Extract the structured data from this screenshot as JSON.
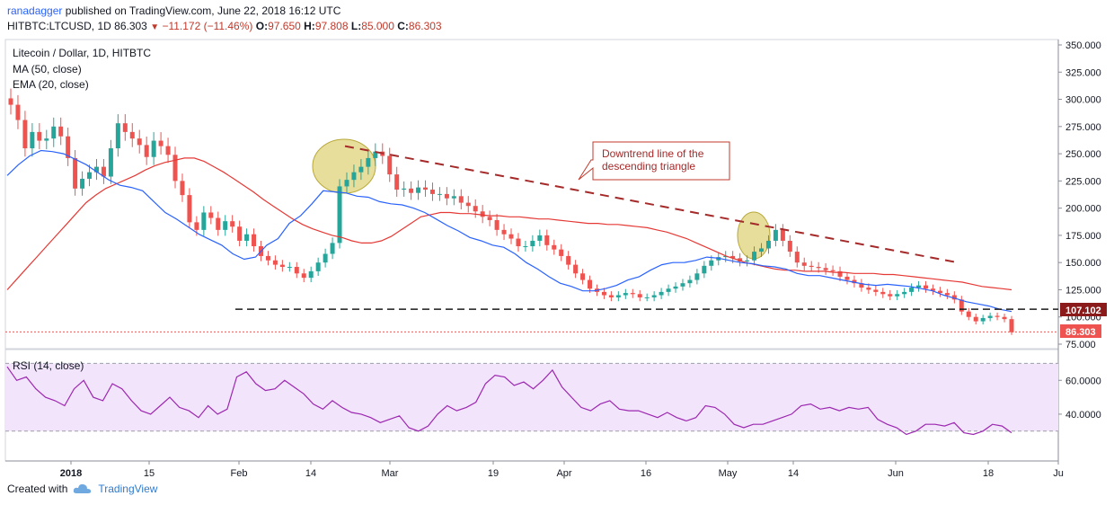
{
  "header": {
    "author": "ranadagger",
    "published": "published on TradingView.com, June 22, 2018 16:12 UTC",
    "symbol": "HITBTC:LTCUSD, 1D",
    "last": "86.303",
    "change": "−11.172 (−11.46%)",
    "o_label": "O:",
    "o_value": "97.650",
    "h_label": "H:",
    "h_value": "97.808",
    "l_label": "L:",
    "l_value": "85.000",
    "c_label": "C:",
    "c_value": "86.303"
  },
  "legend": {
    "title": "Litecoin / Dollar, 1D, HITBTC",
    "ma": "MA (50, close)",
    "ema": "EMA (20, close)",
    "rsi": "RSI (14, close)"
  },
  "annotation": {
    "line1": "Downtrend line of the",
    "line2": "descending triangle"
  },
  "price_labels": {
    "level": "107.102",
    "last": "86.303"
  },
  "footer": {
    "created": "Created with",
    "brand": "TradingView"
  },
  "colors": {
    "up": "#26a69a",
    "down": "#ef5350",
    "ma": "#e53935",
    "ema": "#2962ff",
    "rsi": "#9c27b0",
    "rsi_band": "#f1e4fb",
    "downtrend": "#a52a2a",
    "highlight": "#d4c24a"
  },
  "chart_data": {
    "type": "candlestick",
    "title": "Litecoin / Dollar, 1D, HITBTC",
    "y_ticks": [
      "350.000",
      "325.000",
      "300.000",
      "275.000",
      "250.000",
      "225.000",
      "200.000",
      "175.000",
      "150.000",
      "125.000",
      "100.000",
      "75.000"
    ],
    "y_range": [
      75,
      350
    ],
    "x_ticks": [
      "2018",
      "15",
      "Feb",
      "14",
      "Mar",
      "19",
      "Apr",
      "16",
      "May",
      "14",
      "Jun",
      "18",
      "Ju"
    ],
    "support_level": 107.102,
    "last_price": 86.303,
    "downtrend_line": [
      [
        27,
        257
      ],
      [
        84,
        150
      ]
    ],
    "closes": [
      295,
      281,
      255,
      270,
      262,
      264,
      275,
      266,
      246,
      218,
      227,
      233,
      238,
      229,
      255,
      278,
      270,
      264,
      258,
      247,
      262,
      257,
      249,
      225,
      212,
      187,
      180,
      196,
      191,
      180,
      188,
      183,
      170,
      176,
      165,
      156,
      152,
      148,
      146,
      146,
      140,
      136,
      142,
      150,
      158,
      168,
      220,
      226,
      233,
      238,
      246,
      252,
      248,
      231,
      217,
      218,
      214,
      219,
      217,
      213,
      213,
      209,
      211,
      205,
      202,
      197,
      192,
      189,
      180,
      176,
      172,
      165,
      165,
      170,
      175,
      166,
      162,
      156,
      148,
      140,
      134,
      126,
      123,
      120,
      118,
      120,
      122,
      121,
      118,
      118,
      120,
      123,
      126,
      128,
      131,
      134,
      140,
      147,
      152,
      155,
      156,
      154,
      151,
      152,
      160,
      163,
      170,
      180,
      170,
      160,
      150,
      147,
      146,
      145,
      143,
      142,
      137,
      134,
      131,
      127,
      125,
      123,
      121,
      119,
      121,
      123,
      127,
      129,
      126,
      124,
      122,
      120,
      116,
      105,
      100,
      96,
      99,
      101,
      100,
      98,
      86
    ],
    "ma50": [
      125,
      135,
      145,
      155,
      165,
      175,
      185,
      195,
      205,
      212,
      218,
      222,
      226,
      230,
      235,
      239,
      242,
      244,
      246,
      246,
      243,
      238,
      233,
      227,
      221,
      215,
      208,
      202,
      196,
      190,
      185,
      181,
      178,
      175,
      173,
      170,
      168,
      168,
      170,
      174,
      180,
      186,
      192,
      194,
      196,
      196,
      195,
      195,
      194,
      193,
      193,
      192,
      192,
      191,
      190,
      190,
      189,
      188,
      187,
      186,
      186,
      185,
      185,
      184,
      183,
      182,
      180,
      178,
      175,
      172,
      168,
      164,
      160,
      156,
      153,
      150,
      148,
      146,
      144,
      143,
      143,
      142,
      142,
      142,
      141,
      141,
      140,
      140,
      140,
      139,
      139,
      138,
      137,
      136,
      135,
      134,
      133,
      132,
      130,
      128,
      127,
      126,
      125
    ],
    "ema20": [
      230,
      240,
      248,
      253,
      252,
      250,
      245,
      240,
      233,
      226,
      221,
      219,
      216,
      206,
      196,
      190,
      183,
      176,
      171,
      166,
      158,
      153,
      155,
      166,
      172,
      186,
      193,
      204,
      216,
      215,
      214,
      211,
      210,
      206,
      204,
      203,
      200,
      196,
      190,
      184,
      179,
      173,
      170,
      166,
      164,
      158,
      150,
      144,
      137,
      131,
      128,
      124,
      124,
      126,
      129,
      134,
      137,
      143,
      148,
      150,
      150,
      152,
      155,
      154,
      152,
      150,
      149,
      147,
      146,
      144,
      140,
      138,
      138,
      136,
      134,
      132,
      130,
      129,
      130,
      129,
      128,
      126,
      124,
      120,
      117,
      114,
      112,
      110,
      107,
      105
    ],
    "rsi": [
      68,
      60,
      62,
      55,
      50,
      48,
      45,
      55,
      60,
      50,
      48,
      58,
      55,
      48,
      42,
      40,
      45,
      50,
      44,
      42,
      38,
      45,
      40,
      43,
      62,
      65,
      58,
      54,
      55,
      60,
      56,
      52,
      46,
      43,
      48,
      44,
      41,
      40,
      38,
      35,
      37,
      39,
      32,
      30,
      33,
      40,
      45,
      42,
      44,
      47,
      58,
      63,
      62,
      57,
      59,
      55,
      60,
      66,
      56,
      50,
      44,
      42,
      46,
      48,
      43,
      42,
      42,
      40,
      38,
      41,
      38,
      36,
      38,
      45,
      44,
      40,
      34,
      32,
      34,
      34,
      36,
      38,
      40,
      45,
      46,
      43,
      44,
      42,
      44,
      43,
      44,
      37,
      34,
      32,
      28,
      30,
      34,
      34,
      33,
      35,
      29,
      28,
      30,
      34,
      33,
      29
    ]
  }
}
